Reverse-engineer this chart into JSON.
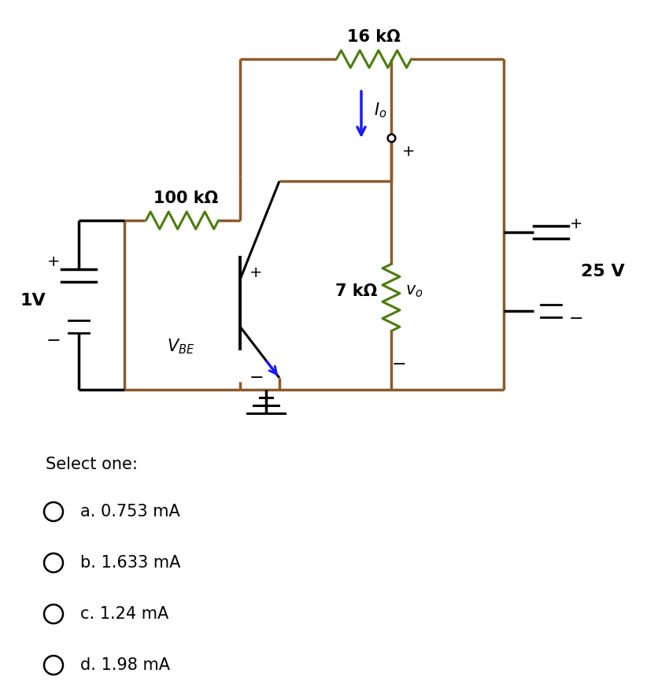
{
  "bg_color": "#ffffff",
  "wire_color": "#8B5A2B",
  "resistor_color": "#4d7c0f",
  "transistor_color": "#1a1aff",
  "text_color": "#000000",
  "select_one": "Select one:",
  "options": [
    "a. 0.753 mA",
    "b. 1.633 mA",
    "c. 1.24 mA",
    "d. 1.98 mA"
  ],
  "R1_label": "16 kΩ",
  "R2_label": "100 kΩ",
  "R3_label": "7 kΩ",
  "V1_label": "1V",
  "V2_label": "25 V",
  "Io_label": "I_o",
  "vo_label": "v_o",
  "VBE_label": "V_{BE}",
  "fig_width": 8.5,
  "fig_height": 8.74,
  "dpi": 100
}
